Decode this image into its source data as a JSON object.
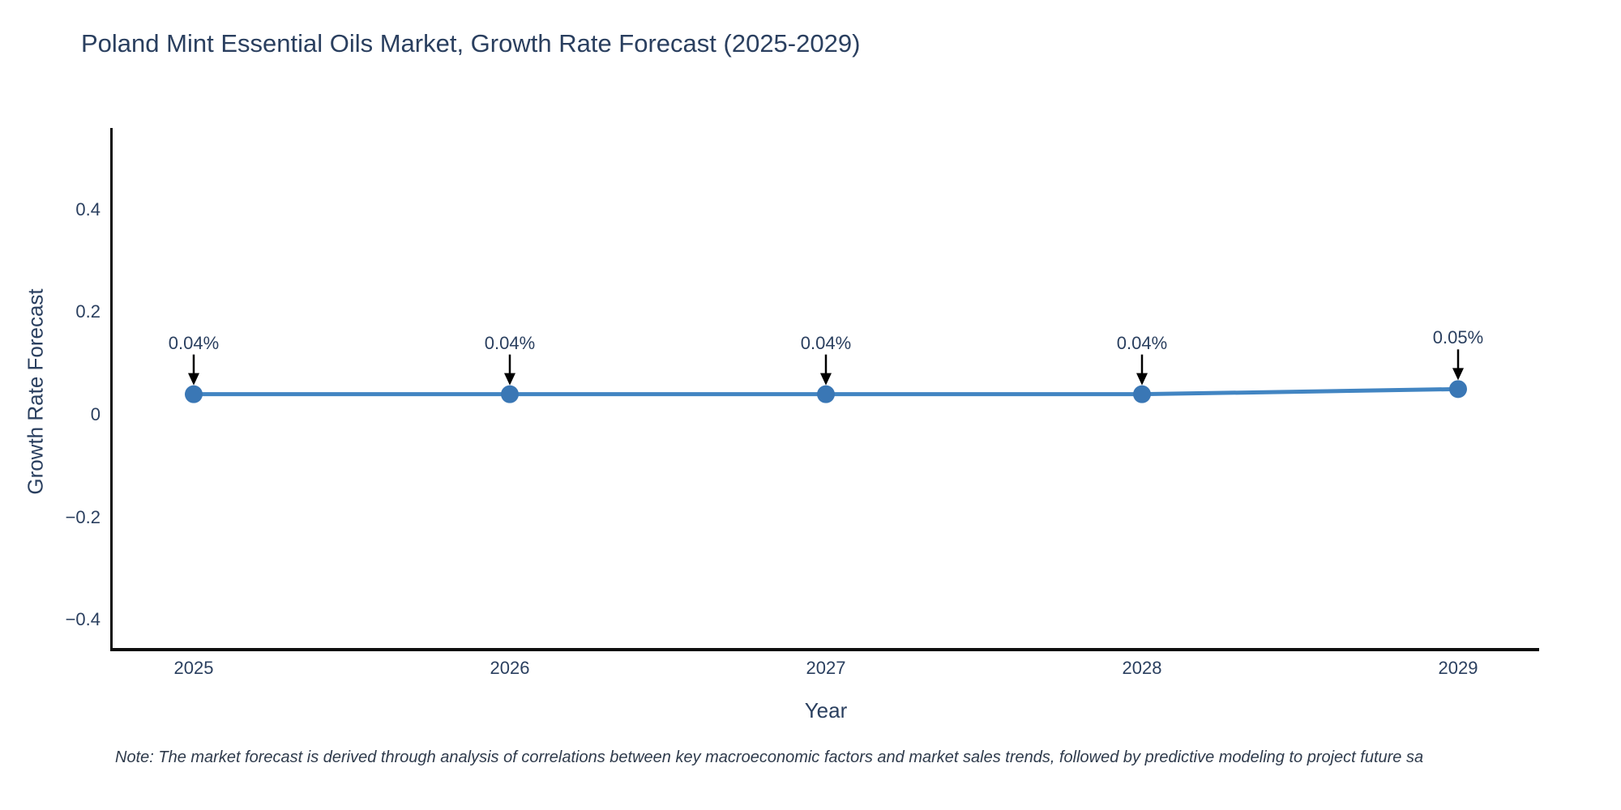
{
  "chart": {
    "note": "Note: The market forecast is derived through analysis of correlations between key macroeconomic factors and market sales trends, followed by predictive modeling to project future sa",
    "colors": {
      "line": "#4285c2",
      "marker": "#3a77b5",
      "axis_line": "#0d0d0d",
      "text": "#2a3f5f",
      "arrow": "#000000",
      "background": "#ffffff"
    }
  },
  "chart_data": {
    "type": "line",
    "title": "Poland Mint Essential Oils Market, Growth Rate Forecast (2025-2029)",
    "xlabel": "Year",
    "ylabel": "Growth Rate Forecast",
    "x": [
      2025,
      2026,
      2027,
      2028,
      2029
    ],
    "series": [
      {
        "name": "Growth Rate Forecast",
        "values": [
          0.04,
          0.04,
          0.04,
          0.04,
          0.05
        ]
      }
    ],
    "point_labels": [
      "0.04%",
      "0.04%",
      "0.04%",
      "0.04%",
      "0.05%"
    ],
    "xtick_labels": [
      "2025",
      "2026",
      "2027",
      "2028",
      "2029"
    ],
    "yticks": [
      0.4,
      0.2,
      0,
      -0.2,
      -0.4
    ],
    "ytick_labels": [
      "0.4",
      "0.2",
      "0",
      "−0.2",
      "−0.4"
    ],
    "ylim": [
      -0.46,
      0.55
    ],
    "grid": false,
    "legend": false,
    "annotations_have_arrows": true
  }
}
